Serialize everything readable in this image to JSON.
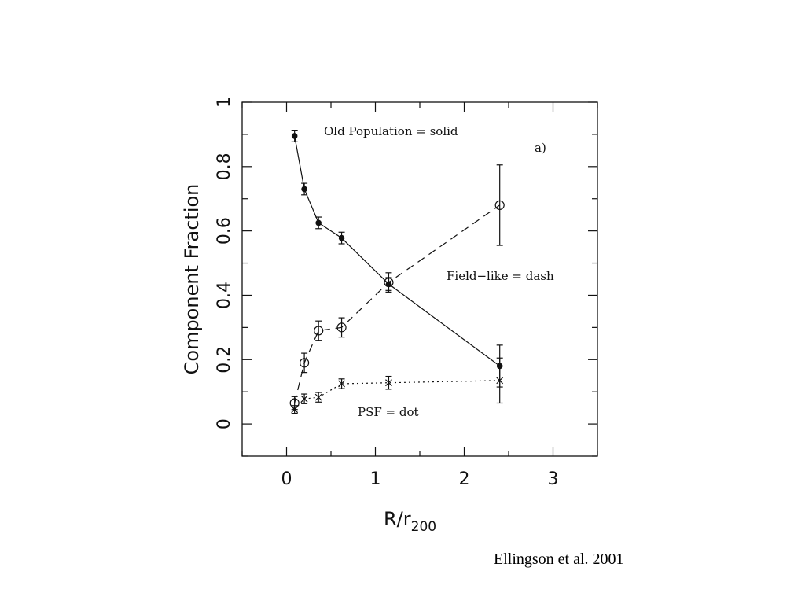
{
  "chart_data": {
    "type": "scatter",
    "title": "",
    "xlabel_main": "R/r",
    "xlabel_sub": "200",
    "ylabel": "Component Fraction",
    "xlim": [
      -0.5,
      3.5
    ],
    "ylim": [
      -0.1,
      1.0
    ],
    "xticks": [
      "0",
      "1",
      "2",
      "3"
    ],
    "yticks": [
      "0",
      "0.2",
      "0.4",
      "0.6",
      "0.8",
      "1"
    ],
    "grid": false,
    "series": [
      {
        "key": "old",
        "marker": "filled-circle",
        "line": "solid",
        "x": [
          0.09,
          0.2,
          0.36,
          0.62,
          1.15,
          2.4
        ],
        "y": [
          0.895,
          0.73,
          0.625,
          0.578,
          0.435,
          0.18
        ],
        "err": [
          0.018,
          0.018,
          0.018,
          0.018,
          0.02,
          0.065
        ]
      },
      {
        "key": "field",
        "marker": "open-circle",
        "line": "dash",
        "x": [
          0.09,
          0.2,
          0.36,
          0.62,
          1.15,
          2.4
        ],
        "y": [
          0.065,
          0.19,
          0.29,
          0.3,
          0.44,
          0.68
        ],
        "err": [
          0.02,
          0.03,
          0.03,
          0.03,
          0.03,
          0.125
        ]
      },
      {
        "key": "psf",
        "marker": "x",
        "line": "dot",
        "x": [
          0.09,
          0.2,
          0.36,
          0.62,
          1.15,
          2.4
        ],
        "y": [
          0.045,
          0.078,
          0.083,
          0.125,
          0.128,
          0.135
        ],
        "err": [
          0.012,
          0.015,
          0.015,
          0.015,
          0.02,
          0.07
        ]
      }
    ],
    "annotations": {
      "old": "Old Population = solid",
      "field": "Field−like = dash",
      "psf": "PSF = dot",
      "panel": "a)"
    }
  },
  "citation": "Ellingson et al. 2001"
}
